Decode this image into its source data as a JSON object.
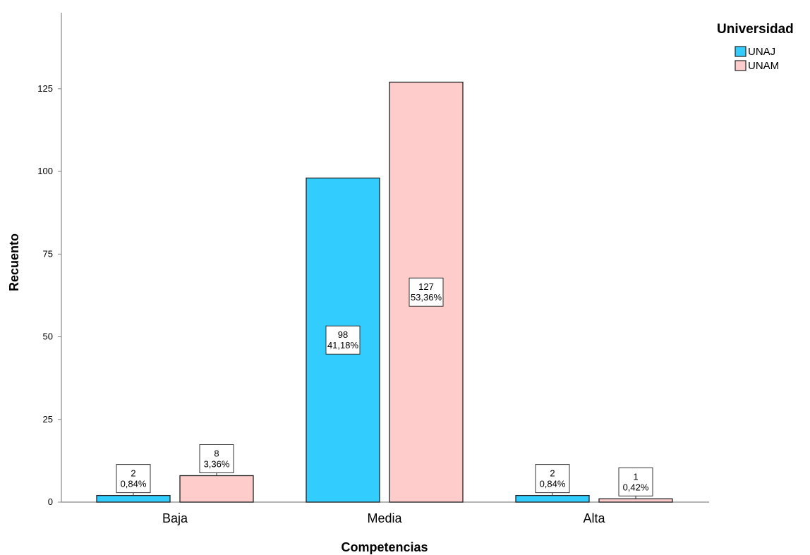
{
  "chart_data": {
    "type": "bar",
    "xlabel": "Competencias",
    "ylabel": "Recuento",
    "categories": [
      "Baja",
      "Media",
      "Alta"
    ],
    "ylim": [
      0,
      148
    ],
    "yticks": [
      0,
      25,
      50,
      75,
      100,
      125
    ],
    "legend": {
      "title": "Universidad",
      "position": "top-right"
    },
    "grid": false,
    "series": [
      {
        "name": "UNAJ",
        "color": "#33ccff",
        "values": [
          2,
          98,
          2
        ],
        "percent_labels": [
          "0,84%",
          "41,18%",
          "0,84%"
        ]
      },
      {
        "name": "UNAM",
        "color": "#ffcccc",
        "values": [
          8,
          127,
          1
        ],
        "percent_labels": [
          "3,36%",
          "53,36%",
          "0,42%"
        ]
      }
    ]
  }
}
